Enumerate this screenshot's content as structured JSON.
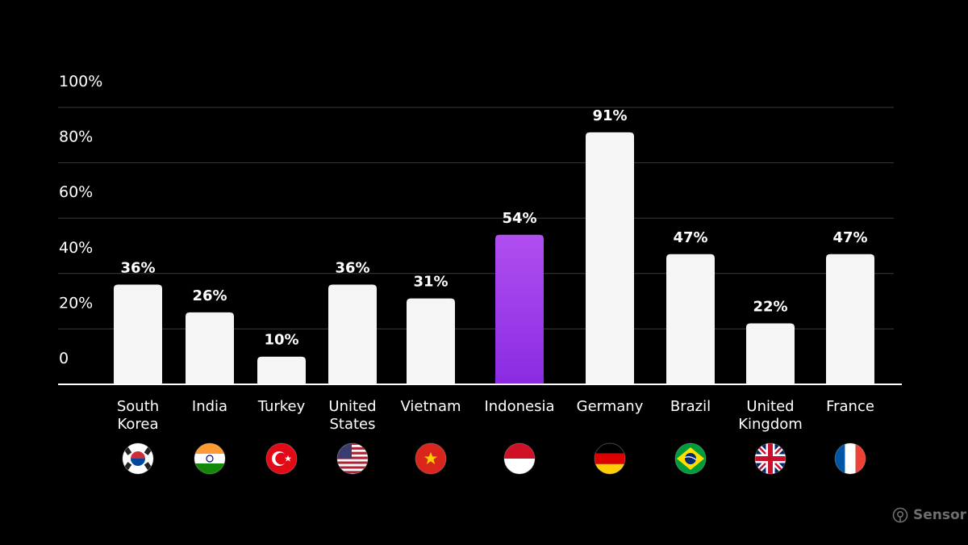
{
  "chart_data": {
    "type": "bar",
    "categories": [
      "South Korea",
      "India",
      "Turkey",
      "United States",
      "Vietnam",
      "Indonesia",
      "Germany",
      "Brazil",
      "United Kingdom",
      "France"
    ],
    "category_lines": [
      [
        "South",
        "Korea"
      ],
      [
        "India"
      ],
      [
        "Turkey"
      ],
      [
        "United",
        "States"
      ],
      [
        "Vietnam"
      ],
      [
        "Indonesia"
      ],
      [
        "Germany"
      ],
      [
        "Brazil"
      ],
      [
        "United",
        "Kingdom"
      ],
      [
        "France"
      ]
    ],
    "values": [
      36,
      26,
      10,
      36,
      31,
      54,
      91,
      47,
      22,
      47
    ],
    "data_labels": [
      "36%",
      "26%",
      "10%",
      "36%",
      "31%",
      "54%",
      "91%",
      "47%",
      "22%",
      "47%"
    ],
    "highlight_index": 5,
    "ylim": [
      0,
      100
    ],
    "y_ticks": [
      0,
      20,
      40,
      60,
      80,
      100
    ],
    "y_tick_labels": [
      "0",
      "20%",
      "40%",
      "60%",
      "80%",
      "100%"
    ],
    "grid": true,
    "title": "",
    "xlabel": "",
    "ylabel": "",
    "colors": {
      "background": "#000000",
      "bar": "#f5f5f5",
      "highlight_bar_top": "#b14ef0",
      "highlight_bar_bottom": "#8a2be2",
      "grid": "#3a3a3a",
      "axis": "#ffffff"
    },
    "flag_icons": [
      "south-korea-flag-icon",
      "india-flag-icon",
      "turkey-flag-icon",
      "united-states-flag-icon",
      "vietnam-flag-icon",
      "indonesia-flag-icon",
      "germany-flag-icon",
      "brazil-flag-icon",
      "united-kingdom-flag-icon",
      "france-flag-icon"
    ]
  },
  "watermark": {
    "text": "Sensor Tower",
    "icon": "sensor-tower-logo-icon"
  }
}
